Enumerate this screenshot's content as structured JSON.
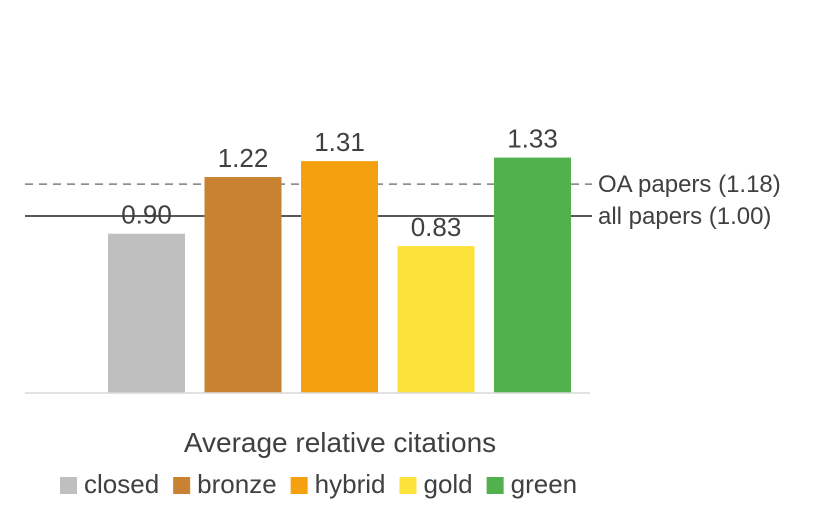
{
  "chart_data": {
    "type": "bar",
    "xlabel": "Average relative citations",
    "ylabel": "",
    "ylim": [
      0,
      1.45
    ],
    "grid": false,
    "legend_placement": "bottom",
    "categories": [
      "closed",
      "bronze",
      "hybrid",
      "gold",
      "green"
    ],
    "values": [
      0.9,
      1.22,
      1.31,
      0.83,
      1.33
    ],
    "data_labels": [
      "0.90",
      "1.22",
      "1.31",
      "0.83",
      "1.33"
    ],
    "colors": [
      "#bfbfbf",
      "#c98232",
      "#f5a00f",
      "#fde23a",
      "#51b14d"
    ],
    "reference_lines": [
      {
        "label": "OA papers (1.18)",
        "value": 1.18,
        "style": "dashed",
        "color": "#7f7f7f"
      },
      {
        "label": "all papers (1.00)",
        "value": 1.0,
        "style": "solid",
        "color": "#595959"
      }
    ],
    "legend": [
      {
        "label": "closed",
        "color": "#bfbfbf"
      },
      {
        "label": "bronze",
        "color": "#c98232"
      },
      {
        "label": "hybrid",
        "color": "#f5a00f"
      },
      {
        "label": "gold",
        "color": "#fde23a"
      },
      {
        "label": "green",
        "color": "#51b14d"
      }
    ]
  }
}
